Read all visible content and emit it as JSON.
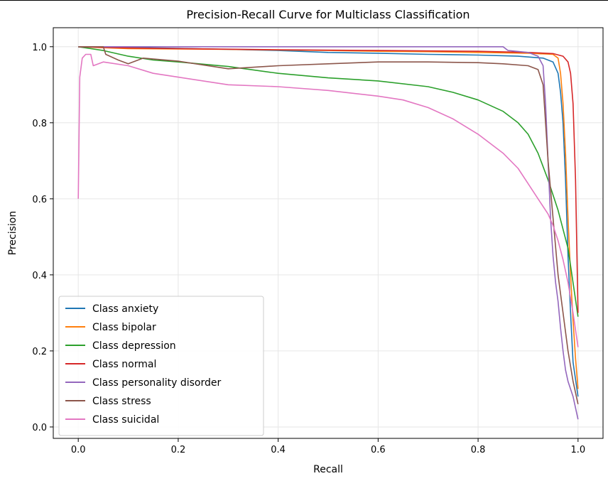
{
  "chart_data": {
    "type": "line",
    "title": "Precision-Recall Curve for Multiclass Classification",
    "xlabel": "Recall",
    "ylabel": "Precision",
    "xlim": [
      -0.05,
      1.05
    ],
    "ylim": [
      -0.03,
      1.05
    ],
    "xticks": [
      0.0,
      0.2,
      0.4,
      0.6,
      0.8,
      1.0
    ],
    "yticks": [
      0.0,
      0.2,
      0.4,
      0.6,
      0.8,
      1.0
    ],
    "xtick_labels": [
      "0.0",
      "0.2",
      "0.4",
      "0.6",
      "0.8",
      "1.0"
    ],
    "ytick_labels": [
      "0.0",
      "0.2",
      "0.4",
      "0.6",
      "0.8",
      "1.0"
    ],
    "grid": true,
    "legend_position": "lower-left",
    "series": [
      {
        "name": "Class anxiety",
        "color": "#1f77b4",
        "x": [
          0.0,
          0.05,
          0.15,
          0.3,
          0.4,
          0.5,
          0.6,
          0.7,
          0.8,
          0.88,
          0.93,
          0.95,
          0.96,
          0.965,
          0.97,
          0.975,
          0.98,
          0.985,
          0.99,
          1.0
        ],
        "y": [
          1.0,
          1.0,
          0.997,
          0.993,
          0.99,
          0.985,
          0.983,
          0.98,
          0.978,
          0.975,
          0.97,
          0.96,
          0.93,
          0.88,
          0.8,
          0.65,
          0.45,
          0.3,
          0.17,
          0.08
        ]
      },
      {
        "name": "Class bipolar",
        "color": "#ff7f0e",
        "x": [
          0.0,
          0.1,
          0.3,
          0.5,
          0.6,
          0.7,
          0.8,
          0.9,
          0.95,
          0.96,
          0.965,
          0.97,
          0.975,
          0.98,
          0.985,
          0.99,
          0.995,
          1.0
        ],
        "y": [
          1.0,
          0.995,
          0.993,
          0.99,
          0.988,
          0.987,
          0.985,
          0.983,
          0.98,
          0.97,
          0.93,
          0.85,
          0.72,
          0.55,
          0.4,
          0.28,
          0.18,
          0.1
        ]
      },
      {
        "name": "Class depression",
        "color": "#2ca02c",
        "x": [
          0.0,
          0.05,
          0.1,
          0.15,
          0.2,
          0.3,
          0.4,
          0.5,
          0.6,
          0.7,
          0.75,
          0.8,
          0.85,
          0.88,
          0.9,
          0.92,
          0.94,
          0.96,
          0.98,
          1.0
        ],
        "y": [
          1.0,
          0.99,
          0.975,
          0.965,
          0.96,
          0.948,
          0.93,
          0.918,
          0.91,
          0.895,
          0.88,
          0.86,
          0.83,
          0.8,
          0.77,
          0.72,
          0.65,
          0.57,
          0.47,
          0.29
        ]
      },
      {
        "name": "Class normal",
        "color": "#d62728",
        "x": [
          0.0,
          0.1,
          0.2,
          0.4,
          0.6,
          0.8,
          0.9,
          0.95,
          0.97,
          0.98,
          0.985,
          0.99,
          0.995,
          1.0
        ],
        "y": [
          1.0,
          0.997,
          0.995,
          0.992,
          0.99,
          0.988,
          0.985,
          0.982,
          0.975,
          0.96,
          0.93,
          0.85,
          0.65,
          0.3
        ]
      },
      {
        "name": "Class personality disorder",
        "color": "#9467bd",
        "x": [
          0.0,
          0.2,
          0.5,
          0.85,
          0.86,
          0.9,
          0.92,
          0.93,
          0.935,
          0.94,
          0.945,
          0.95,
          0.955,
          0.96,
          0.965,
          0.97,
          0.975,
          0.98,
          0.99,
          0.995,
          1.0
        ],
        "y": [
          1.0,
          1.0,
          1.0,
          1.0,
          0.99,
          0.985,
          0.975,
          0.95,
          0.85,
          0.7,
          0.55,
          0.45,
          0.38,
          0.33,
          0.26,
          0.2,
          0.15,
          0.12,
          0.08,
          0.05,
          0.02
        ]
      },
      {
        "name": "Class stress",
        "color": "#8c564b",
        "x": [
          0.0,
          0.05,
          0.055,
          0.08,
          0.1,
          0.13,
          0.2,
          0.3,
          0.4,
          0.5,
          0.6,
          0.7,
          0.8,
          0.85,
          0.9,
          0.92,
          0.93,
          0.935,
          0.94,
          0.95,
          0.96,
          0.97,
          0.98,
          0.99,
          1.0
        ],
        "y": [
          1.0,
          1.0,
          0.98,
          0.965,
          0.955,
          0.97,
          0.962,
          0.942,
          0.95,
          0.955,
          0.96,
          0.96,
          0.958,
          0.955,
          0.95,
          0.94,
          0.9,
          0.8,
          0.7,
          0.55,
          0.4,
          0.3,
          0.2,
          0.12,
          0.06
        ]
      },
      {
        "name": "Class suicidal",
        "color": "#e377c2",
        "x": [
          0.0,
          0.003,
          0.008,
          0.015,
          0.025,
          0.03,
          0.05,
          0.1,
          0.15,
          0.2,
          0.3,
          0.4,
          0.5,
          0.6,
          0.65,
          0.7,
          0.75,
          0.8,
          0.85,
          0.88,
          0.9,
          0.92,
          0.94,
          0.95,
          0.96,
          0.97,
          0.98,
          0.99,
          1.0
        ],
        "y": [
          0.6,
          0.92,
          0.97,
          0.98,
          0.98,
          0.95,
          0.96,
          0.95,
          0.93,
          0.92,
          0.9,
          0.895,
          0.885,
          0.87,
          0.86,
          0.84,
          0.81,
          0.77,
          0.72,
          0.68,
          0.64,
          0.6,
          0.56,
          0.53,
          0.49,
          0.44,
          0.38,
          0.3,
          0.21
        ]
      }
    ]
  }
}
